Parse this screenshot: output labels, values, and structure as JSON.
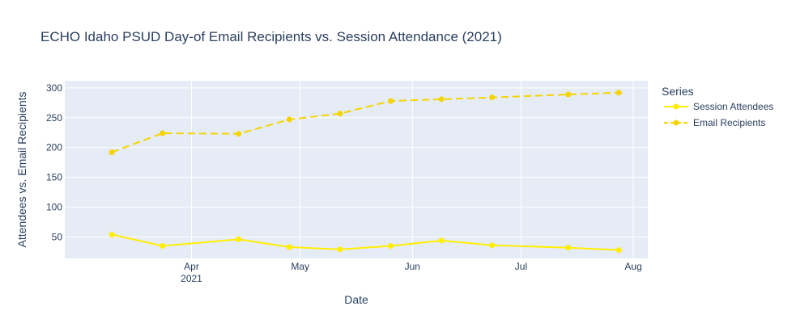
{
  "chart_data": {
    "type": "line",
    "title": "ECHO Idaho PSUD Day-of Email Recipients vs. Session Attendance (2021)",
    "xlabel": "Date",
    "ylabel": "Attendees vs. Email Recipients",
    "x": [
      "2021-03-10",
      "2021-03-24",
      "2021-04-14",
      "2021-04-28",
      "2021-05-12",
      "2021-05-26",
      "2021-06-09",
      "2021-06-23",
      "2021-07-14",
      "2021-07-28"
    ],
    "x_ticks": [
      {
        "date": "2021-04-01",
        "label": "Apr",
        "sublabel": "2021"
      },
      {
        "date": "2021-05-01",
        "label": "May",
        "sublabel": ""
      },
      {
        "date": "2021-06-01",
        "label": "Jun",
        "sublabel": ""
      },
      {
        "date": "2021-07-01",
        "label": "Jul",
        "sublabel": ""
      },
      {
        "date": "2021-08-01",
        "label": "Aug",
        "sublabel": ""
      }
    ],
    "xlim": [
      "2021-02-25",
      "2021-08-05"
    ],
    "ylim": [
      14,
      312
    ],
    "y_ticks": [
      50,
      100,
      150,
      200,
      250,
      300
    ],
    "grid": true,
    "legend_title": "Series",
    "legend_position": "right",
    "series": [
      {
        "name": "Session Attendees",
        "color": "#ffee00",
        "dash": "solid",
        "values": [
          54,
          35,
          46,
          33,
          29,
          35,
          44,
          36,
          32,
          28
        ]
      },
      {
        "name": "Email Recipients",
        "color": "#f5d400",
        "dash": "dash",
        "values": [
          192,
          224,
          223,
          247,
          257,
          278,
          281,
          284,
          289,
          292
        ]
      }
    ]
  }
}
